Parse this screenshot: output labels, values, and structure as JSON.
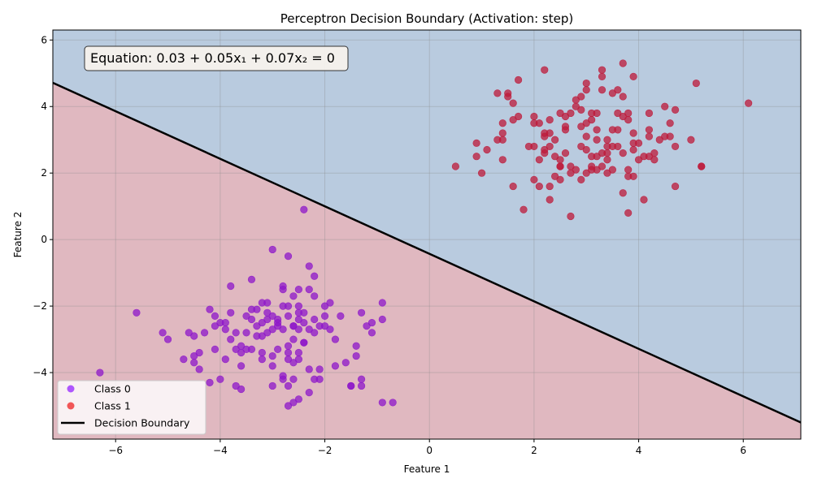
{
  "chart_data": {
    "type": "scatter",
    "title": "Perceptron Decision Boundary (Activation: step)",
    "xlabel": "Feature 1",
    "ylabel": "Feature 2",
    "xlim": [
      -7.2,
      7.1
    ],
    "ylim": [
      -6.0,
      6.3
    ],
    "xticks": [
      -6,
      -4,
      -2,
      0,
      2,
      4,
      6
    ],
    "yticks": [
      -4,
      -2,
      0,
      2,
      4,
      6
    ],
    "grid": true,
    "equation": "Equation: 0.03 + 0.05x₁ + 0.07x₂ = 0",
    "weights": {
      "bias": 0.03,
      "w1": 0.05,
      "w2": 0.07
    },
    "region_colors": {
      "class0": "#b9cbdf",
      "class1": "#e0b8c0"
    },
    "legend_position": "lower-left",
    "legend": [
      {
        "label": "Class 0",
        "kind": "marker",
        "color": "#9b30ff"
      },
      {
        "label": "Class 1",
        "kind": "marker",
        "color": "#ef2f2f"
      },
      {
        "label": "Decision Boundary",
        "kind": "line",
        "color": "#000000"
      }
    ],
    "series": [
      {
        "name": "Class 0",
        "color": "#8e17c9",
        "points": [
          [
            -6.3,
            -4.0
          ],
          [
            -5.6,
            -2.2
          ],
          [
            -5.1,
            -2.8
          ],
          [
            -5.0,
            -3.0
          ],
          [
            -4.7,
            -3.6
          ],
          [
            -4.6,
            -2.8
          ],
          [
            -4.5,
            -2.9
          ],
          [
            -4.5,
            -3.5
          ],
          [
            -4.5,
            -3.7
          ],
          [
            -4.4,
            -3.4
          ],
          [
            -4.4,
            -3.9
          ],
          [
            -4.3,
            -2.8
          ],
          [
            -4.2,
            -2.1
          ],
          [
            -4.2,
            -4.3
          ],
          [
            -4.1,
            -2.3
          ],
          [
            -4.1,
            -2.6
          ],
          [
            -4.1,
            -3.3
          ],
          [
            -4.0,
            -2.5
          ],
          [
            -4.0,
            -4.2
          ],
          [
            -3.9,
            -2.5
          ],
          [
            -3.9,
            -2.7
          ],
          [
            -3.9,
            -3.6
          ],
          [
            -3.8,
            -2.2
          ],
          [
            -3.8,
            -3.0
          ],
          [
            -3.8,
            -1.4
          ],
          [
            -3.7,
            -2.8
          ],
          [
            -3.7,
            -3.3
          ],
          [
            -3.7,
            -4.4
          ],
          [
            -3.6,
            -3.8
          ],
          [
            -3.6,
            -4.5
          ],
          [
            -3.6,
            -3.4
          ],
          [
            -3.6,
            -3.2
          ],
          [
            -3.5,
            -3.3
          ],
          [
            -3.5,
            -2.8
          ],
          [
            -3.5,
            -2.3
          ],
          [
            -3.4,
            -2.1
          ],
          [
            -3.4,
            -2.4
          ],
          [
            -3.4,
            -1.2
          ],
          [
            -3.4,
            -3.3
          ],
          [
            -3.3,
            -2.6
          ],
          [
            -3.3,
            -2.1
          ],
          [
            -3.3,
            -2.9
          ],
          [
            -3.2,
            -2.5
          ],
          [
            -3.2,
            -1.9
          ],
          [
            -3.2,
            -2.9
          ],
          [
            -3.2,
            -3.4
          ],
          [
            -3.2,
            -3.6
          ],
          [
            -3.1,
            -1.9
          ],
          [
            -3.1,
            -2.4
          ],
          [
            -3.1,
            -2.8
          ],
          [
            -3.1,
            -2.2
          ],
          [
            -3.0,
            -0.3
          ],
          [
            -3.0,
            -2.3
          ],
          [
            -3.0,
            -2.7
          ],
          [
            -3.0,
            -3.5
          ],
          [
            -3.0,
            -3.8
          ],
          [
            -3.0,
            -4.4
          ],
          [
            -2.9,
            -2.5
          ],
          [
            -2.9,
            -2.6
          ],
          [
            -2.9,
            -2.4
          ],
          [
            -2.9,
            -3.3
          ],
          [
            -2.8,
            -1.4
          ],
          [
            -2.8,
            -1.5
          ],
          [
            -2.8,
            -2.0
          ],
          [
            -2.8,
            -2.7
          ],
          [
            -2.8,
            -4.1
          ],
          [
            -2.8,
            -4.2
          ],
          [
            -2.7,
            -0.5
          ],
          [
            -2.7,
            -2.0
          ],
          [
            -2.7,
            -2.3
          ],
          [
            -2.7,
            -3.2
          ],
          [
            -2.7,
            -3.4
          ],
          [
            -2.7,
            -3.6
          ],
          [
            -2.7,
            -4.4
          ],
          [
            -2.7,
            -5.0
          ],
          [
            -2.6,
            -1.7
          ],
          [
            -2.6,
            -2.6
          ],
          [
            -2.6,
            -2.6
          ],
          [
            -2.6,
            -3.0
          ],
          [
            -2.6,
            -3.7
          ],
          [
            -2.6,
            -4.2
          ],
          [
            -2.6,
            -4.9
          ],
          [
            -2.5,
            -1.5
          ],
          [
            -2.5,
            -2.0
          ],
          [
            -2.5,
            -2.2
          ],
          [
            -2.5,
            -2.4
          ],
          [
            -2.5,
            -2.7
          ],
          [
            -2.5,
            -3.4
          ],
          [
            -2.5,
            -3.6
          ],
          [
            -2.5,
            -4.8
          ],
          [
            -2.4,
            -2.2
          ],
          [
            -2.4,
            -2.5
          ],
          [
            -2.4,
            -3.1
          ],
          [
            -2.4,
            -3.1
          ],
          [
            -2.4,
            0.9
          ],
          [
            -2.3,
            -0.8
          ],
          [
            -2.3,
            -1.5
          ],
          [
            -2.3,
            -2.7
          ],
          [
            -2.3,
            -3.9
          ],
          [
            -2.3,
            -4.6
          ],
          [
            -2.2,
            -1.1
          ],
          [
            -2.2,
            -1.7
          ],
          [
            -2.2,
            -2.4
          ],
          [
            -2.2,
            -2.8
          ],
          [
            -2.2,
            -4.2
          ],
          [
            -2.1,
            -2.6
          ],
          [
            -2.1,
            -3.9
          ],
          [
            -2.1,
            -4.2
          ],
          [
            -2.0,
            -2.0
          ],
          [
            -2.0,
            -2.3
          ],
          [
            -2.0,
            -2.6
          ],
          [
            -1.9,
            -1.9
          ],
          [
            -1.9,
            -2.7
          ],
          [
            -1.8,
            -3.0
          ],
          [
            -1.8,
            -3.8
          ],
          [
            -1.7,
            -2.3
          ],
          [
            -1.6,
            -3.7
          ],
          [
            -1.5,
            -4.4
          ],
          [
            -1.5,
            -4.4
          ],
          [
            -1.4,
            -3.2
          ],
          [
            -1.4,
            -3.5
          ],
          [
            -1.3,
            -2.2
          ],
          [
            -1.3,
            -4.2
          ],
          [
            -1.3,
            -4.4
          ],
          [
            -1.2,
            -2.6
          ],
          [
            -1.1,
            -2.5
          ],
          [
            -1.1,
            -2.8
          ],
          [
            -0.9,
            -1.9
          ],
          [
            -0.9,
            -2.4
          ],
          [
            -0.9,
            -4.9
          ],
          [
            -0.7,
            -4.9
          ]
        ]
      },
      {
        "name": "Class 1",
        "color": "#be1a3a",
        "points": [
          [
            0.5,
            2.2
          ],
          [
            0.9,
            2.5
          ],
          [
            0.9,
            2.9
          ],
          [
            1.0,
            2.0
          ],
          [
            1.1,
            2.7
          ],
          [
            1.3,
            3.0
          ],
          [
            1.3,
            4.4
          ],
          [
            1.4,
            3.0
          ],
          [
            1.4,
            3.2
          ],
          [
            1.4,
            3.5
          ],
          [
            1.4,
            2.4
          ],
          [
            1.5,
            4.3
          ],
          [
            1.5,
            4.4
          ],
          [
            1.6,
            4.1
          ],
          [
            1.6,
            1.6
          ],
          [
            1.6,
            3.6
          ],
          [
            1.7,
            3.7
          ],
          [
            1.7,
            4.8
          ],
          [
            1.8,
            0.9
          ],
          [
            1.9,
            2.8
          ],
          [
            2.0,
            2.8
          ],
          [
            2.0,
            3.5
          ],
          [
            2.0,
            1.8
          ],
          [
            2.0,
            3.7
          ],
          [
            2.1,
            3.5
          ],
          [
            2.1,
            1.6
          ],
          [
            2.1,
            2.4
          ],
          [
            2.2,
            2.7
          ],
          [
            2.2,
            2.6
          ],
          [
            2.2,
            3.2
          ],
          [
            2.2,
            3.1
          ],
          [
            2.2,
            5.1
          ],
          [
            2.3,
            1.6
          ],
          [
            2.3,
            1.2
          ],
          [
            2.3,
            2.8
          ],
          [
            2.3,
            3.2
          ],
          [
            2.3,
            3.6
          ],
          [
            2.4,
            2.5
          ],
          [
            2.4,
            3.0
          ],
          [
            2.4,
            1.9
          ],
          [
            2.5,
            2.2
          ],
          [
            2.5,
            1.8
          ],
          [
            2.5,
            2.4
          ],
          [
            2.5,
            3.8
          ],
          [
            2.5,
            2.2
          ],
          [
            2.6,
            3.3
          ],
          [
            2.6,
            3.4
          ],
          [
            2.6,
            2.6
          ],
          [
            2.6,
            3.7
          ],
          [
            2.7,
            2.0
          ],
          [
            2.7,
            0.7
          ],
          [
            2.7,
            2.2
          ],
          [
            2.7,
            3.8
          ],
          [
            2.8,
            4.0
          ],
          [
            2.8,
            4.2
          ],
          [
            2.8,
            2.1
          ],
          [
            2.9,
            1.8
          ],
          [
            2.9,
            2.8
          ],
          [
            2.9,
            3.4
          ],
          [
            2.9,
            4.3
          ],
          [
            2.9,
            3.9
          ],
          [
            3.0,
            4.5
          ],
          [
            3.0,
            4.7
          ],
          [
            3.0,
            3.1
          ],
          [
            3.0,
            2.7
          ],
          [
            3.0,
            3.5
          ],
          [
            3.0,
            2.0
          ],
          [
            3.1,
            2.2
          ],
          [
            3.1,
            2.5
          ],
          [
            3.1,
            3.6
          ],
          [
            3.1,
            2.1
          ],
          [
            3.1,
            3.8
          ],
          [
            3.2,
            3.3
          ],
          [
            3.2,
            3.0
          ],
          [
            3.2,
            3.8
          ],
          [
            3.2,
            2.1
          ],
          [
            3.2,
            2.5
          ],
          [
            3.3,
            5.1
          ],
          [
            3.3,
            4.5
          ],
          [
            3.3,
            4.9
          ],
          [
            3.3,
            2.2
          ],
          [
            3.3,
            2.6
          ],
          [
            3.4,
            2.8
          ],
          [
            3.4,
            3.0
          ],
          [
            3.4,
            2.4
          ],
          [
            3.4,
            2.6
          ],
          [
            3.4,
            2.0
          ],
          [
            3.5,
            3.3
          ],
          [
            3.5,
            4.4
          ],
          [
            3.5,
            2.1
          ],
          [
            3.5,
            2.8
          ],
          [
            3.6,
            4.5
          ],
          [
            3.6,
            3.3
          ],
          [
            3.6,
            2.8
          ],
          [
            3.6,
            3.8
          ],
          [
            3.7,
            5.3
          ],
          [
            3.7,
            4.3
          ],
          [
            3.7,
            3.7
          ],
          [
            3.7,
            1.4
          ],
          [
            3.7,
            2.6
          ],
          [
            3.8,
            3.6
          ],
          [
            3.8,
            1.9
          ],
          [
            3.8,
            3.8
          ],
          [
            3.8,
            2.1
          ],
          [
            3.8,
            0.8
          ],
          [
            3.9,
            3.2
          ],
          [
            3.9,
            2.9
          ],
          [
            3.9,
            2.7
          ],
          [
            3.9,
            1.9
          ],
          [
            3.9,
            4.9
          ],
          [
            4.0,
            2.9
          ],
          [
            4.0,
            2.4
          ],
          [
            4.1,
            2.5
          ],
          [
            4.1,
            1.2
          ],
          [
            4.2,
            3.3
          ],
          [
            4.2,
            2.5
          ],
          [
            4.2,
            3.8
          ],
          [
            4.2,
            3.1
          ],
          [
            4.3,
            2.6
          ],
          [
            4.3,
            2.4
          ],
          [
            4.4,
            3.0
          ],
          [
            4.5,
            4.0
          ],
          [
            4.5,
            3.1
          ],
          [
            4.6,
            3.5
          ],
          [
            4.6,
            3.1
          ],
          [
            4.7,
            2.8
          ],
          [
            4.7,
            3.9
          ],
          [
            4.7,
            1.6
          ],
          [
            5.0,
            3.0
          ],
          [
            5.1,
            4.7
          ],
          [
            5.2,
            2.2
          ],
          [
            5.2,
            2.2
          ],
          [
            6.1,
            4.1
          ]
        ]
      }
    ]
  }
}
